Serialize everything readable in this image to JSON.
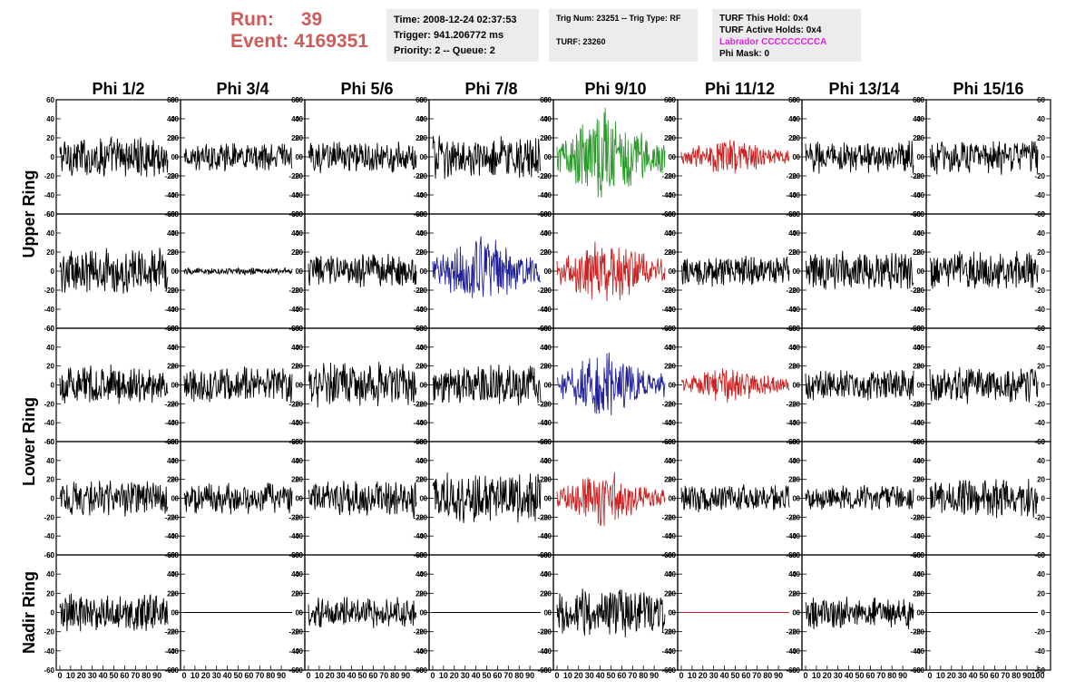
{
  "header": {
    "run_label": "Run:",
    "run_value": "39",
    "event_label": "Event:",
    "event_value": "4169351",
    "time": "Time: 2008-12-24 02:37:53",
    "trigger": "Trigger: 941.206772 ms",
    "priority": "Priority: 2 -- Queue: 2",
    "trig_num": "Trig Num: 23251 -- Trig Type: RF",
    "turf": "TURF: 23260",
    "turf_this_hold": "TURF This Hold: 0x4",
    "turf_active_holds": "TURF Active Holds: 0x4",
    "labrador": "Labrador CCCCCCCCCA",
    "phi_mask": "Phi Mask: 0"
  },
  "colors": {
    "run_text": "#d05a5a",
    "labrador_text": "#e020e0",
    "trace_black": "#000000",
    "trace_green": "#2a9a2a",
    "trace_red": "#cc2222",
    "trace_blue": "#20209a",
    "info_box_bg": "#ececec"
  },
  "chart_data": {
    "type": "line",
    "columns": [
      "Phi 1/2",
      "Phi 3/4",
      "Phi 5/6",
      "Phi 7/8",
      "Phi 9/10",
      "Phi 11/12",
      "Phi 13/14",
      "Phi 15/16"
    ],
    "rows": [
      "Upper Ring",
      "Lower Ring",
      "Nadir Ring"
    ],
    "xlim": [
      0,
      100
    ],
    "ylim": [
      -60,
      60
    ],
    "y_ticks": [
      60,
      40,
      20,
      0,
      -20,
      -40,
      -60
    ],
    "x_ticks": [
      "0",
      "10",
      "20",
      "30",
      "40",
      "50",
      "60",
      "70",
      "80",
      "90",
      "100"
    ],
    "panels": [
      {
        "row": 0,
        "col": 0,
        "color": "black",
        "amp": 18,
        "env": "flat"
      },
      {
        "row": 0,
        "col": 1,
        "color": "black",
        "amp": 12,
        "env": "flat"
      },
      {
        "row": 0,
        "col": 2,
        "color": "black",
        "amp": 14,
        "env": "flat"
      },
      {
        "row": 0,
        "col": 3,
        "color": "black",
        "amp": 18,
        "env": "flat"
      },
      {
        "row": 0,
        "col": 4,
        "color": "green",
        "amp": 42,
        "env": "burst"
      },
      {
        "row": 0,
        "col": 5,
        "color": "red",
        "amp": 16,
        "env": "burst"
      },
      {
        "row": 0,
        "col": 6,
        "color": "black",
        "amp": 14,
        "env": "flat"
      },
      {
        "row": 0,
        "col": 7,
        "color": "black",
        "amp": 15,
        "env": "flat"
      },
      {
        "row": 1,
        "col": 0,
        "color": "black",
        "amp": 20,
        "env": "flat"
      },
      {
        "row": 1,
        "col": 1,
        "color": "black",
        "amp": 3,
        "env": "flat"
      },
      {
        "row": 1,
        "col": 2,
        "color": "black",
        "amp": 15,
        "env": "flat"
      },
      {
        "row": 1,
        "col": 3,
        "color": "blue",
        "amp": 35,
        "env": "burst"
      },
      {
        "row": 1,
        "col": 4,
        "color": "red",
        "amp": 30,
        "env": "burst"
      },
      {
        "row": 1,
        "col": 5,
        "color": "black",
        "amp": 13,
        "env": "flat"
      },
      {
        "row": 1,
        "col": 6,
        "color": "black",
        "amp": 17,
        "env": "flat"
      },
      {
        "row": 1,
        "col": 7,
        "color": "black",
        "amp": 17,
        "env": "flat"
      },
      {
        "row": 2,
        "col": 0,
        "color": "black",
        "amp": 17,
        "env": "flat"
      },
      {
        "row": 2,
        "col": 1,
        "color": "black",
        "amp": 16,
        "env": "flat"
      },
      {
        "row": 2,
        "col": 2,
        "color": "black",
        "amp": 20,
        "env": "flat"
      },
      {
        "row": 2,
        "col": 3,
        "color": "black",
        "amp": 18,
        "env": "flat"
      },
      {
        "row": 2,
        "col": 4,
        "color": "blue",
        "amp": 30,
        "env": "burst"
      },
      {
        "row": 2,
        "col": 5,
        "color": "red",
        "amp": 17,
        "env": "burst"
      },
      {
        "row": 2,
        "col": 6,
        "color": "black",
        "amp": 14,
        "env": "flat"
      },
      {
        "row": 2,
        "col": 7,
        "color": "black",
        "amp": 16,
        "env": "flat"
      },
      {
        "row": 3,
        "col": 0,
        "color": "black",
        "amp": 16,
        "env": "flat"
      },
      {
        "row": 3,
        "col": 1,
        "color": "black",
        "amp": 14,
        "env": "flat"
      },
      {
        "row": 3,
        "col": 2,
        "color": "black",
        "amp": 16,
        "env": "flat"
      },
      {
        "row": 3,
        "col": 3,
        "color": "black",
        "amp": 22,
        "env": "flat"
      },
      {
        "row": 3,
        "col": 4,
        "color": "red",
        "amp": 24,
        "env": "burst"
      },
      {
        "row": 3,
        "col": 5,
        "color": "black",
        "amp": 12,
        "env": "flat"
      },
      {
        "row": 3,
        "col": 6,
        "color": "black",
        "amp": 11,
        "env": "flat"
      },
      {
        "row": 3,
        "col": 7,
        "color": "black",
        "amp": 17,
        "env": "flat"
      },
      {
        "row": 4,
        "col": 0,
        "color": "black",
        "amp": 17,
        "env": "flat"
      },
      {
        "row": 4,
        "col": 1,
        "color": "black",
        "amp": 0,
        "env": "flat"
      },
      {
        "row": 4,
        "col": 2,
        "color": "black",
        "amp": 13,
        "env": "flat"
      },
      {
        "row": 4,
        "col": 3,
        "color": "black",
        "amp": 0,
        "env": "flat"
      },
      {
        "row": 4,
        "col": 4,
        "color": "black",
        "amp": 20,
        "env": "flat"
      },
      {
        "row": 4,
        "col": 5,
        "color": "red",
        "amp": 0,
        "env": "flat"
      },
      {
        "row": 4,
        "col": 6,
        "color": "black",
        "amp": 14,
        "env": "flat"
      },
      {
        "row": 4,
        "col": 7,
        "color": "black",
        "amp": 0,
        "env": "flat"
      }
    ]
  }
}
